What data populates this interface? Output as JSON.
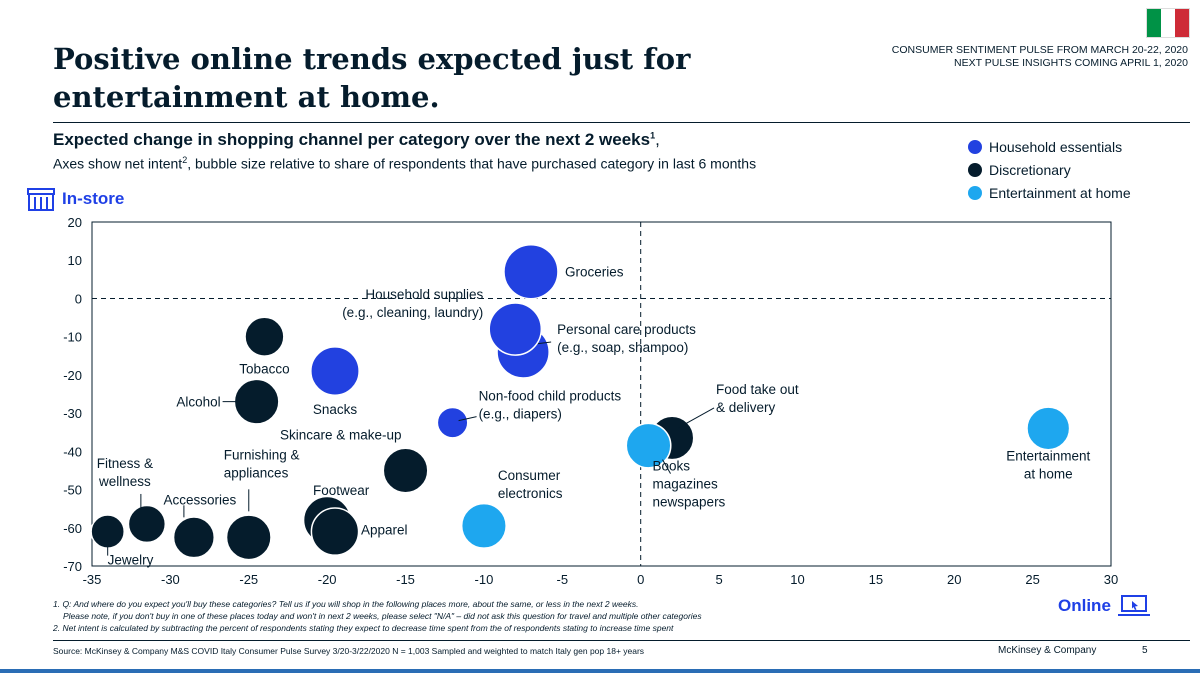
{
  "flag": {
    "colors": [
      "#009246",
      "#ffffff",
      "#ce2b37"
    ]
  },
  "header": {
    "meta_line1": "CONSUMER SENTIMENT PULSE FROM MARCH 20-22, 2020",
    "meta_line2": "NEXT PULSE INSIGHTS COMING APRIL 1, 2020",
    "title": "Positive online trends expected just for entertainment at home."
  },
  "subtitle": {
    "main": "Expected change in shopping channel per category over the next 2 weeks",
    "main_sup": "1",
    "main_suffix": ",",
    "line2_a": "Axes show net intent",
    "line2_sup": "2",
    "line2_b": ", bubble size relative to share of respondents that have purchased category in last 6 months"
  },
  "axis_labels": {
    "y": "In-store",
    "x": "Online"
  },
  "legend": [
    {
      "label": "Household essentials",
      "color": "#2241e0"
    },
    {
      "label": "Discretionary",
      "color": "#051c2c"
    },
    {
      "label": "Entertainment at home",
      "color": "#1ea7ef"
    }
  ],
  "chart_data": {
    "type": "scatter",
    "title": "Expected change in shopping channel per category over the next 2 weeks",
    "xlabel": "Online",
    "ylabel": "In-store",
    "xlim": [
      -35,
      30
    ],
    "ylim": [
      -70,
      20
    ],
    "xticks": [
      -35,
      -30,
      -25,
      -20,
      -15,
      -10,
      -5,
      0,
      5,
      10,
      15,
      20,
      25,
      30
    ],
    "yticks": [
      20,
      10,
      0,
      -10,
      -20,
      -30,
      -40,
      -50,
      -60,
      -70
    ],
    "reference_lines": {
      "x": 0,
      "y": 0
    },
    "points": [
      {
        "name": "Groceries",
        "lines": [
          "Groceries"
        ],
        "x": -7,
        "y": 7,
        "size": 1.0,
        "group": "Household essentials"
      },
      {
        "name": "Personal care products",
        "lines": [
          "Personal care products",
          "(e.g., soap, shampoo)"
        ],
        "x": -7.5,
        "y": -14,
        "size": 0.95,
        "group": "Household essentials"
      },
      {
        "name": "Household supplies",
        "lines": [
          "Household supplies",
          "(e.g., cleaning, laundry)"
        ],
        "x": -8,
        "y": -8,
        "size": 0.95,
        "group": "Household essentials"
      },
      {
        "name": "Snacks",
        "lines": [
          "Snacks"
        ],
        "x": -19.5,
        "y": -19,
        "size": 0.85,
        "group": "Household essentials"
      },
      {
        "name": "Non-food child products",
        "lines": [
          "Non-food child products",
          "(e.g., diapers)"
        ],
        "x": -12,
        "y": -32.5,
        "size": 0.38,
        "group": "Household essentials"
      },
      {
        "name": "Tobacco",
        "lines": [
          "Tobacco"
        ],
        "x": -24,
        "y": -10,
        "size": 0.6,
        "group": "Discretionary"
      },
      {
        "name": "Alcohol",
        "lines": [
          "Alcohol"
        ],
        "x": -24.5,
        "y": -27,
        "size": 0.75,
        "group": "Discretionary"
      },
      {
        "name": "Skincare & make-up",
        "lines": [
          "Skincare & make-up"
        ],
        "x": -15,
        "y": -45,
        "size": 0.75,
        "group": "Discretionary"
      },
      {
        "name": "Footwear",
        "lines": [
          "Footwear"
        ],
        "x": -20,
        "y": -58,
        "size": 0.82,
        "group": "Discretionary"
      },
      {
        "name": "Apparel",
        "lines": [
          "Apparel"
        ],
        "x": -19.5,
        "y": -61,
        "size": 0.82,
        "group": "Discretionary"
      },
      {
        "name": "Furnishing & appliances",
        "lines": [
          "Furnishing &",
          "appliances"
        ],
        "x": -25,
        "y": -62.5,
        "size": 0.75,
        "group": "Discretionary"
      },
      {
        "name": "Accessories",
        "lines": [
          "Accessories"
        ],
        "x": -28.5,
        "y": -62.5,
        "size": 0.65,
        "group": "Discretionary"
      },
      {
        "name": "Fitness & wellness",
        "lines": [
          "Fitness &",
          "wellness"
        ],
        "x": -31.5,
        "y": -59,
        "size": 0.55,
        "group": "Discretionary"
      },
      {
        "name": "Jewelry",
        "lines": [
          "Jewelry"
        ],
        "x": -34,
        "y": -61,
        "size": 0.45,
        "group": "Discretionary"
      },
      {
        "name": "Food take out & delivery",
        "lines": [
          "Food take out",
          "& delivery"
        ],
        "x": 2,
        "y": -36.5,
        "size": 0.72,
        "group": "Discretionary"
      },
      {
        "name": "Consumer electronics",
        "lines": [
          "Consumer",
          "electronics"
        ],
        "x": -10,
        "y": -59.5,
        "size": 0.75,
        "group": "Entertainment at home"
      },
      {
        "name": "Books magazines newspapers",
        "lines": [
          "Books",
          "magazines",
          "newspapers"
        ],
        "x": 0.5,
        "y": -38.5,
        "size": 0.75,
        "group": "Entertainment at home"
      },
      {
        "name": "Entertainment at home",
        "lines": [
          "Entertainment",
          "at home"
        ],
        "x": 26,
        "y": -34,
        "size": 0.7,
        "group": "Entertainment at home"
      }
    ]
  },
  "footnotes": {
    "line1": "1. Q: And where do you expect you'll buy these categories?  Tell us if you will shop in the following places more, about the same, or less in the next 2 weeks.",
    "line2": "Please note, if you don't buy in one of these places today and won't in next 2 weeks, please select \"N/A\" – did not ask this question for travel and multiple other categories",
    "line3": "2. Net intent is calculated by subtracting the percent of respondents stating they expect to decrease time spent from the  of respondents stating to increase time spent"
  },
  "footer": {
    "source": "Source: McKinsey & Company M&S COVID Italy Consumer Pulse Survey 3/20-3/22/2020 N = 1,003 Sampled and weighted to match Italy gen pop 18+ years",
    "brand": "McKinsey & Company",
    "page": "5"
  }
}
